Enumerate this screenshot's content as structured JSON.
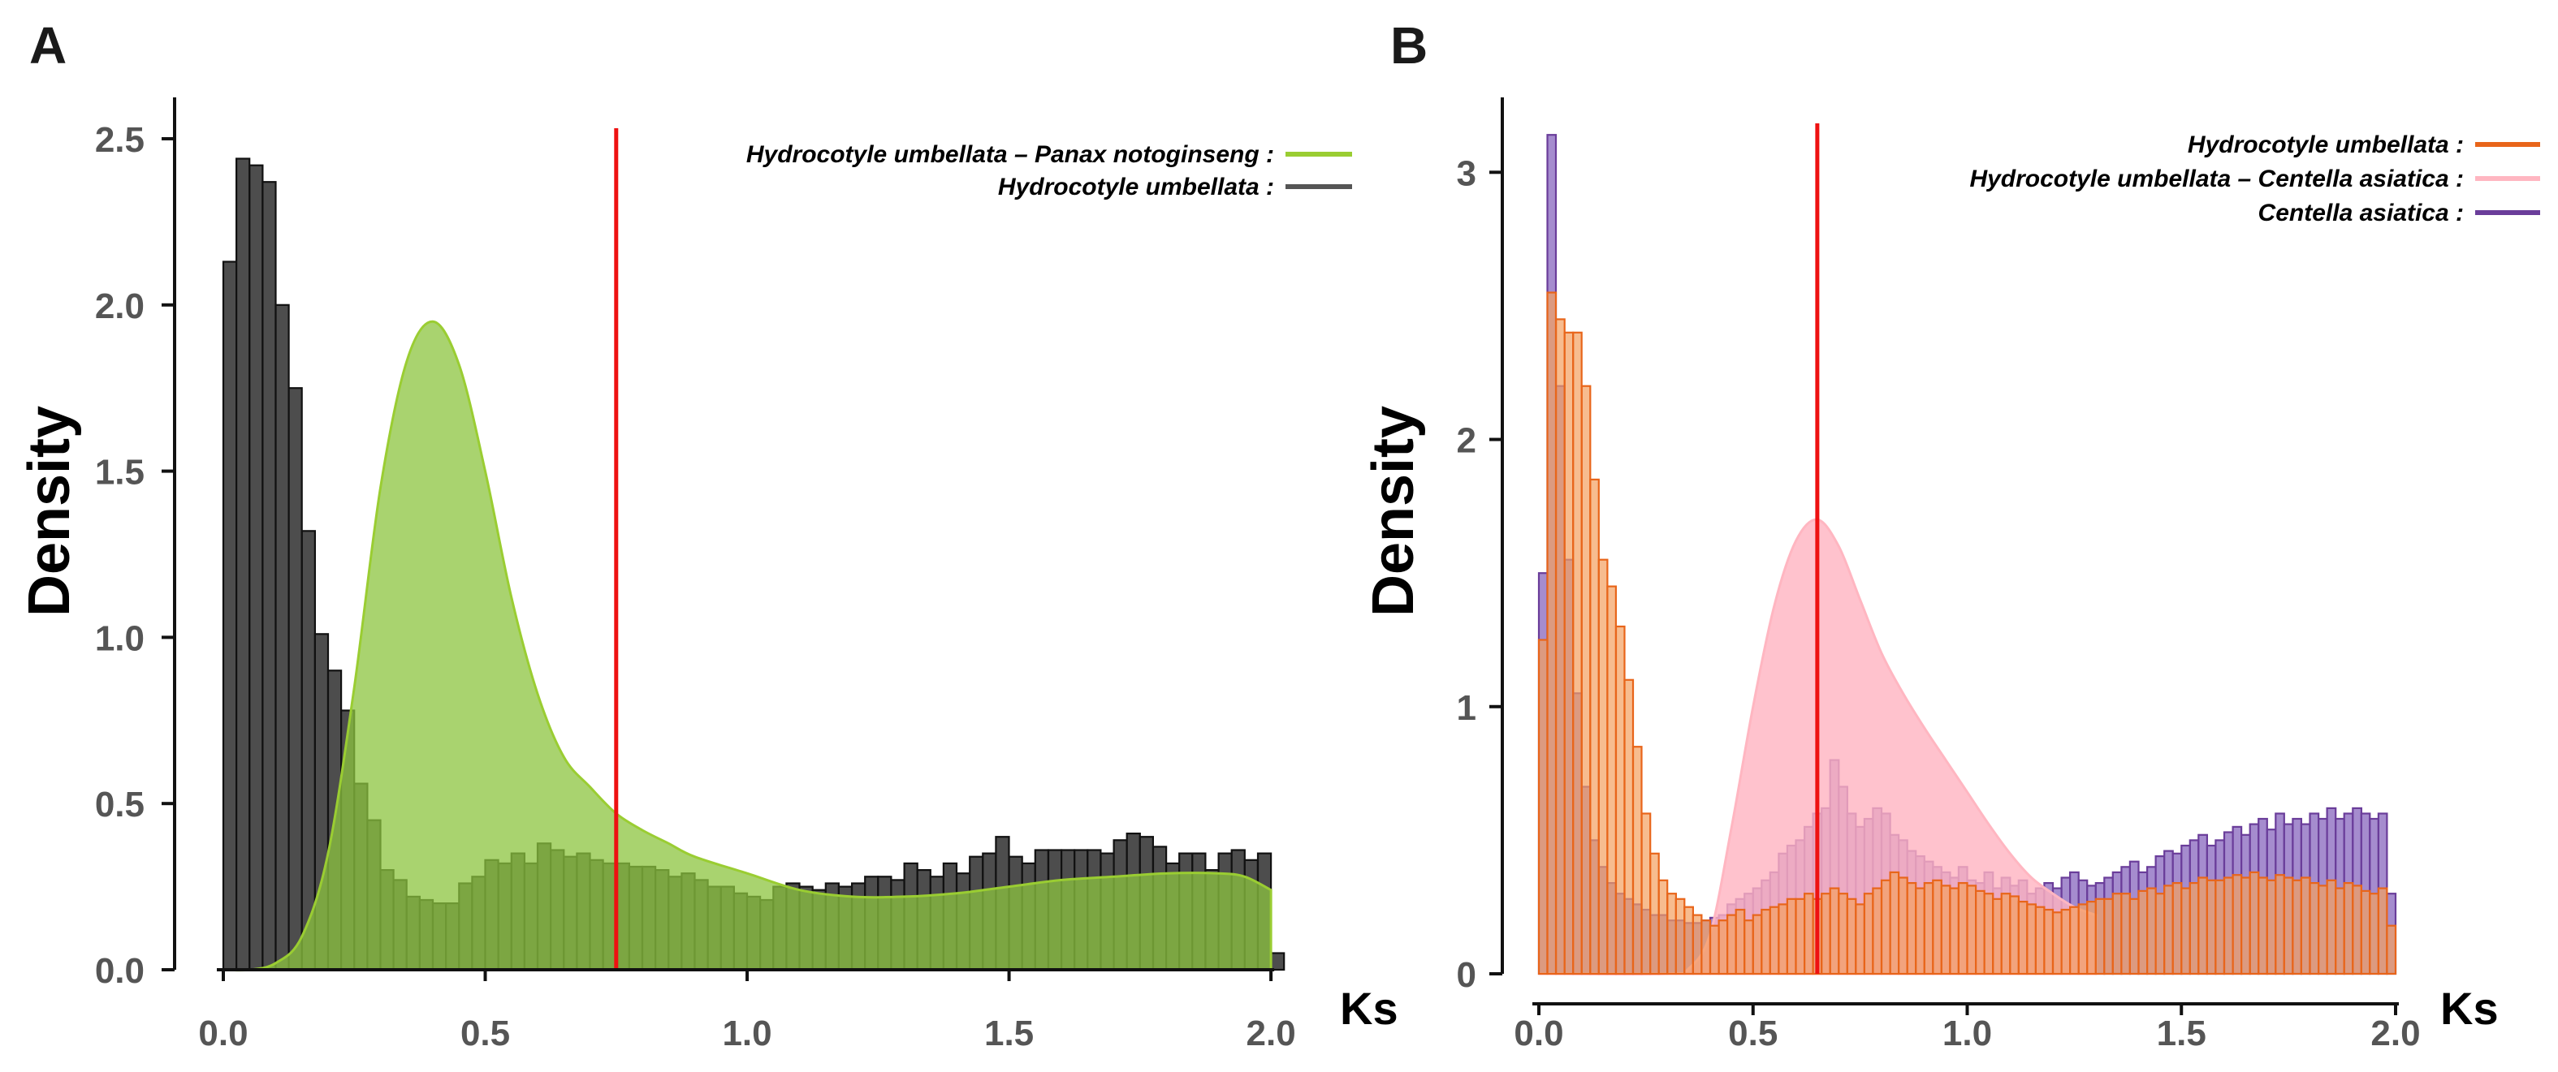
{
  "panels": {
    "a": {
      "letter": "A"
    },
    "b": {
      "letter": "B"
    }
  },
  "chart_data": [
    {
      "panel": "A",
      "type": "bar",
      "xlabel": "Ks",
      "ylabel": "Density",
      "xlim": [
        0,
        2.02
      ],
      "ylim": [
        0,
        2.6
      ],
      "xticks": [
        "0.0",
        "0.5",
        "1.0",
        "1.5",
        "2.0"
      ],
      "yticks": [
        "0.0",
        "0.5",
        "1.0",
        "1.5",
        "2.0",
        "2.5"
      ],
      "grid": false,
      "legend_position": "top-right",
      "vline_x": 0.75,
      "vline_color": "#ee1111",
      "histogram": {
        "name": "Hydrocotyle umbellata",
        "legend_label": "Hydrocotyle umbellata :",
        "color": "#4d4d4d",
        "edge": "#111111",
        "legend_color": "#555555",
        "bin_start": 0.0,
        "bin_width": 0.025,
        "values": [
          2.13,
          2.44,
          2.42,
          2.37,
          2.0,
          1.75,
          1.32,
          1.01,
          0.9,
          0.78,
          0.56,
          0.45,
          0.3,
          0.27,
          0.22,
          0.21,
          0.2,
          0.2,
          0.26,
          0.28,
          0.33,
          0.32,
          0.35,
          0.32,
          0.38,
          0.36,
          0.34,
          0.35,
          0.33,
          0.32,
          0.32,
          0.31,
          0.31,
          0.3,
          0.28,
          0.29,
          0.27,
          0.25,
          0.25,
          0.23,
          0.22,
          0.21,
          0.25,
          0.26,
          0.25,
          0.24,
          0.26,
          0.25,
          0.26,
          0.28,
          0.28,
          0.27,
          0.32,
          0.3,
          0.28,
          0.32,
          0.29,
          0.34,
          0.35,
          0.4,
          0.34,
          0.32,
          0.36,
          0.36,
          0.36,
          0.36,
          0.36,
          0.35,
          0.39,
          0.41,
          0.4,
          0.37,
          0.32,
          0.35,
          0.35,
          0.3,
          0.35,
          0.36,
          0.33,
          0.35,
          0.05
        ]
      },
      "density": {
        "name": "Hydrocotyle umbellata – Panax notoginseng",
        "legend_label": "Hydrocotyle umbellata – Panax notoginseng :",
        "color": "#9acd32",
        "fill": "#8cc43f",
        "x": [
          0.0,
          0.05,
          0.1,
          0.15,
          0.2,
          0.25,
          0.3,
          0.35,
          0.4,
          0.45,
          0.5,
          0.55,
          0.6,
          0.65,
          0.7,
          0.75,
          0.8,
          0.85,
          0.9,
          1.0,
          1.1,
          1.2,
          1.3,
          1.4,
          1.5,
          1.6,
          1.7,
          1.8,
          1.9,
          1.95,
          2.0
        ],
        "y": [
          0.0,
          0.0,
          0.02,
          0.1,
          0.35,
          0.85,
          1.45,
          1.83,
          1.95,
          1.82,
          1.5,
          1.12,
          0.83,
          0.64,
          0.55,
          0.47,
          0.42,
          0.38,
          0.34,
          0.29,
          0.24,
          0.22,
          0.22,
          0.23,
          0.25,
          0.27,
          0.28,
          0.29,
          0.29,
          0.28,
          0.24
        ]
      }
    },
    {
      "panel": "B",
      "type": "bar",
      "xlabel": "Ks",
      "ylabel": "Density",
      "xlim": [
        0,
        2.0
      ],
      "ylim": [
        0,
        3.25
      ],
      "xticks": [
        "0.0",
        "0.5",
        "1.0",
        "1.5",
        "2.0"
      ],
      "yticks": [
        "0",
        "1",
        "2",
        "3"
      ],
      "grid": false,
      "legend_position": "top-right",
      "vline_x": 0.65,
      "vline_color": "#ee1111",
      "histogram_purple": {
        "name": "Centella asiatica",
        "legend_label": "Centella asiatica :",
        "color": "#9b7fc9",
        "edge": "#6a3d9a",
        "bin_start": 0.0,
        "bin_width": 0.02,
        "values": [
          1.5,
          3.14,
          2.2,
          1.55,
          1.05,
          0.7,
          0.5,
          0.4,
          0.34,
          0.3,
          0.28,
          0.26,
          0.24,
          0.22,
          0.22,
          0.2,
          0.2,
          0.19,
          0.19,
          0.2,
          0.21,
          0.22,
          0.26,
          0.28,
          0.3,
          0.32,
          0.35,
          0.38,
          0.45,
          0.48,
          0.5,
          0.55,
          0.6,
          0.62,
          0.8,
          0.7,
          0.6,
          0.55,
          0.58,
          0.62,
          0.6,
          0.52,
          0.5,
          0.46,
          0.44,
          0.42,
          0.4,
          0.38,
          0.36,
          0.4,
          0.35,
          0.34,
          0.38,
          0.32,
          0.36,
          0.33,
          0.35,
          0.3,
          0.32,
          0.34,
          0.32,
          0.36,
          0.38,
          0.35,
          0.33,
          0.34,
          0.36,
          0.38,
          0.4,
          0.42,
          0.38,
          0.4,
          0.44,
          0.46,
          0.45,
          0.48,
          0.5,
          0.52,
          0.48,
          0.5,
          0.53,
          0.55,
          0.52,
          0.56,
          0.58,
          0.54,
          0.6,
          0.56,
          0.58,
          0.56,
          0.6,
          0.58,
          0.62,
          0.58,
          0.6,
          0.62,
          0.6,
          0.58,
          0.6,
          0.3
        ]
      },
      "density": {
        "name": "Hydrocotyle umbellata – Centella asiatica",
        "legend_label": "Hydrocotyle umbellata – Centella asiatica :",
        "color": "#ffb6c1",
        "fill": "#ffb3c0",
        "x": [
          0.0,
          0.3,
          0.35,
          0.4,
          0.45,
          0.5,
          0.55,
          0.6,
          0.65,
          0.7,
          0.75,
          0.8,
          0.85,
          0.9,
          0.95,
          1.0,
          1.05,
          1.1,
          1.15,
          1.2,
          1.25,
          1.3
        ],
        "y": [
          0.0,
          0.0,
          0.02,
          0.15,
          0.55,
          1.0,
          1.38,
          1.62,
          1.7,
          1.6,
          1.4,
          1.2,
          1.05,
          0.92,
          0.8,
          0.68,
          0.56,
          0.45,
          0.36,
          0.3,
          0.25,
          0.22
        ]
      },
      "histogram_orange": {
        "name": "Hydrocotyle umbellata",
        "legend_label": "Hydrocotyle umbellata :",
        "color": "#f4a060",
        "edge": "#e8651a",
        "bin_start": 0.0,
        "bin_width": 0.02,
        "values": [
          1.25,
          2.55,
          2.45,
          2.4,
          2.4,
          2.2,
          1.85,
          1.55,
          1.45,
          1.3,
          1.1,
          0.85,
          0.6,
          0.45,
          0.35,
          0.3,
          0.28,
          0.25,
          0.22,
          0.2,
          0.18,
          0.2,
          0.22,
          0.24,
          0.2,
          0.22,
          0.24,
          0.25,
          0.26,
          0.28,
          0.28,
          0.3,
          0.28,
          0.3,
          0.32,
          0.3,
          0.28,
          0.26,
          0.3,
          0.32,
          0.35,
          0.38,
          0.36,
          0.34,
          0.32,
          0.34,
          0.35,
          0.33,
          0.32,
          0.34,
          0.33,
          0.31,
          0.3,
          0.28,
          0.3,
          0.29,
          0.27,
          0.26,
          0.25,
          0.24,
          0.23,
          0.24,
          0.25,
          0.26,
          0.27,
          0.28,
          0.28,
          0.3,
          0.3,
          0.28,
          0.31,
          0.32,
          0.3,
          0.33,
          0.34,
          0.32,
          0.34,
          0.36,
          0.35,
          0.35,
          0.36,
          0.37,
          0.36,
          0.38,
          0.36,
          0.35,
          0.37,
          0.36,
          0.35,
          0.36,
          0.34,
          0.33,
          0.35,
          0.32,
          0.34,
          0.33,
          0.31,
          0.3,
          0.32,
          0.18
        ]
      }
    }
  ]
}
